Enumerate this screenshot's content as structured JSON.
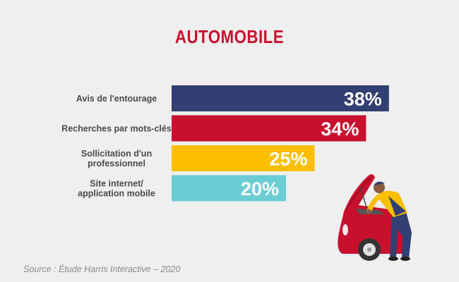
{
  "title": "AUTOMOBILE",
  "source": "Source : Étude Harris Interactive – 2020",
  "colors": {
    "background": "#efefef",
    "title": "#c8102e",
    "label": "#4a4a4a",
    "bar_text": "#ffffff"
  },
  "chart_data": {
    "type": "bar",
    "orientation": "horizontal",
    "categories": [
      "Avis de l'entourage",
      "Recherches par mots-clés",
      "Sollicitation d'un professionnel",
      "Site internet/ application mobile"
    ],
    "category_lines": [
      [
        "Avis de l'entourage"
      ],
      [
        "Recherches par mots-clés"
      ],
      [
        "Sollicitation d'un",
        "professionnel"
      ],
      [
        "Site internet/",
        "application mobile"
      ]
    ],
    "values": [
      38,
      34,
      25,
      20
    ],
    "value_labels": [
      "38%",
      "34%",
      "25%",
      "20%"
    ],
    "colors": [
      "#323f72",
      "#c8102e",
      "#fbbf00",
      "#6cccd4"
    ],
    "xlim": [
      0,
      100
    ],
    "title": "AUTOMOBILE",
    "xlabel": "",
    "ylabel": "",
    "grid": false,
    "legend": "none"
  },
  "illustration": {
    "name": "mechanic-repairing-car-illustration",
    "colors": {
      "car": "#c8102e",
      "overalls": "#323f72",
      "shirt": "#fbbf00",
      "skin": "#8a5a3c",
      "tire": "#333333"
    }
  }
}
